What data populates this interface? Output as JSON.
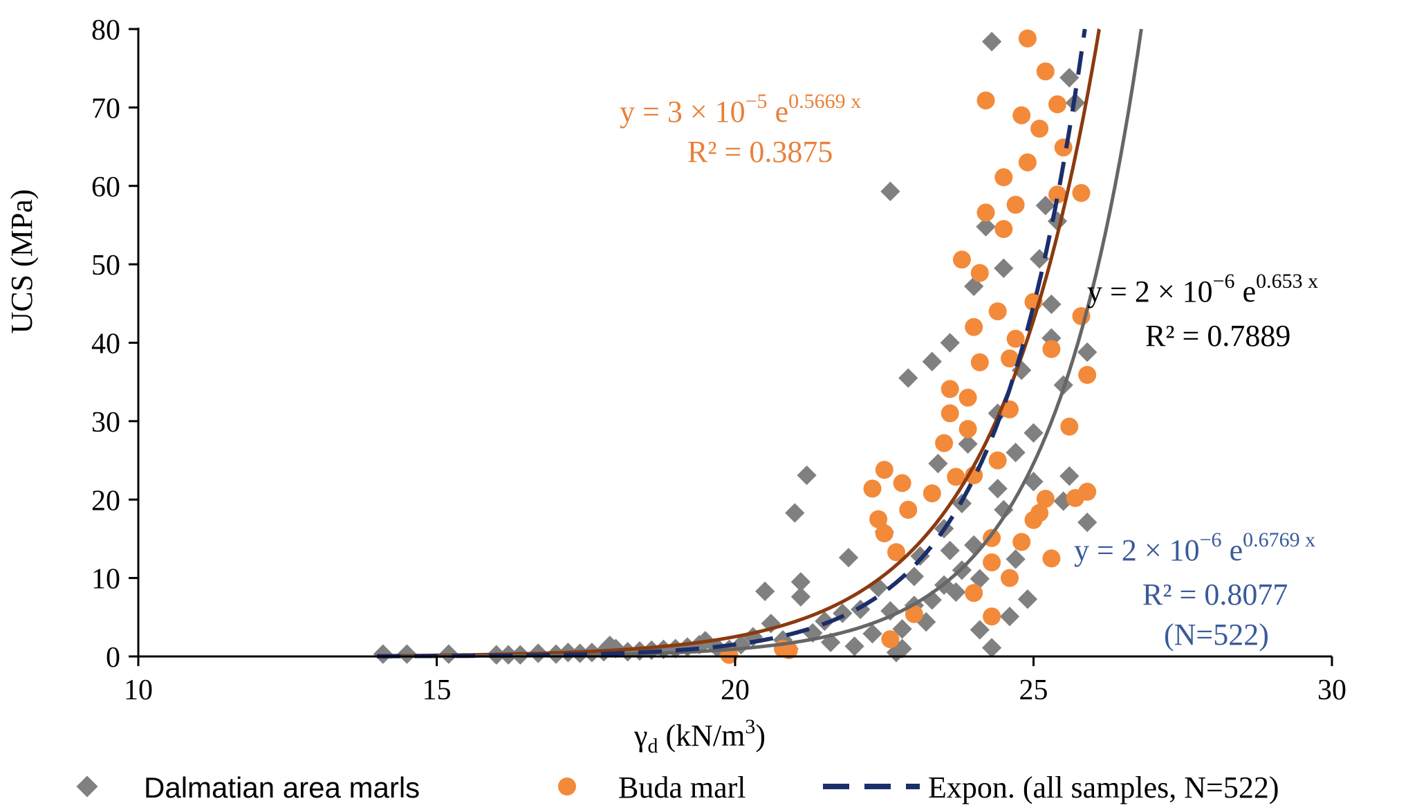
{
  "chart_data": {
    "type": "scatter",
    "xlabel": "γd (kN/m3)",
    "xlabel_parts": {
      "symbol": "γ",
      "subscript": "d",
      "unit_open": " (kN/m",
      "unit_sup": "3",
      "unit_close": ")"
    },
    "ylabel": "UCS (MPa)",
    "xlim": [
      10,
      30
    ],
    "ylim": [
      0,
      80
    ],
    "x_ticks": [
      10,
      15,
      20,
      25,
      30
    ],
    "y_ticks": [
      0,
      10,
      20,
      30,
      40,
      50,
      60,
      70,
      80
    ],
    "grid": false,
    "legend_position": "bottom",
    "colors": {
      "dalmatian": "#808080",
      "buda": "#F28A3A",
      "buda_trend": "#8B3A0F",
      "dalmatian_trend": "#666666",
      "all_trend": "#1A2E6B",
      "buda_label": "#E8813A",
      "all_label": "#3A5A9A",
      "axis": "#000000"
    },
    "series": [
      {
        "name": "Dalmatian area marls",
        "marker": "diamond",
        "points": [
          [
            14.1,
            0.3
          ],
          [
            14.5,
            0.3
          ],
          [
            15.2,
            0.3
          ],
          [
            16.0,
            0.2
          ],
          [
            16.2,
            0.2
          ],
          [
            16.4,
            0.2
          ],
          [
            16.7,
            0.4
          ],
          [
            17.0,
            0.3
          ],
          [
            17.2,
            0.5
          ],
          [
            17.4,
            0.4
          ],
          [
            17.6,
            0.5
          ],
          [
            17.8,
            0.6
          ],
          [
            17.9,
            1.4
          ],
          [
            18.0,
            1.0
          ],
          [
            18.2,
            0.6
          ],
          [
            18.4,
            0.7
          ],
          [
            18.6,
            0.8
          ],
          [
            18.8,
            0.9
          ],
          [
            19.0,
            1.0
          ],
          [
            19.2,
            1.2
          ],
          [
            19.4,
            1.5
          ],
          [
            19.5,
            2.0
          ],
          [
            19.7,
            1.1
          ],
          [
            19.9,
            0.9
          ],
          [
            20.1,
            1.5
          ],
          [
            20.3,
            2.5
          ],
          [
            20.5,
            8.3
          ],
          [
            20.6,
            4.2
          ],
          [
            20.8,
            2.1
          ],
          [
            20.9,
            1.0
          ],
          [
            21.0,
            18.3
          ],
          [
            21.1,
            9.5
          ],
          [
            21.2,
            23.1
          ],
          [
            21.1,
            7.6
          ],
          [
            21.3,
            3.0
          ],
          [
            21.5,
            4.5
          ],
          [
            21.6,
            1.8
          ],
          [
            21.8,
            5.5
          ],
          [
            21.9,
            12.6
          ],
          [
            22.0,
            1.3
          ],
          [
            22.1,
            6.0
          ],
          [
            22.3,
            2.9
          ],
          [
            22.4,
            8.8
          ],
          [
            22.5,
            15.9
          ],
          [
            22.6,
            59.3
          ],
          [
            22.7,
            0.5
          ],
          [
            22.8,
            1.0
          ],
          [
            22.9,
            35.5
          ],
          [
            23.0,
            10.2
          ],
          [
            23.1,
            12.8
          ],
          [
            23.2,
            4.4
          ],
          [
            23.3,
            37.6
          ],
          [
            23.4,
            24.6
          ],
          [
            23.5,
            16.3
          ],
          [
            23.6,
            40.0
          ],
          [
            23.7,
            8.2
          ],
          [
            23.8,
            19.5
          ],
          [
            23.9,
            27.1
          ],
          [
            24.0,
            47.2
          ],
          [
            24.1,
            3.4
          ],
          [
            24.2,
            54.8
          ],
          [
            24.3,
            1.1
          ],
          [
            24.3,
            78.4
          ],
          [
            24.4,
            31.0
          ],
          [
            24.5,
            49.5
          ],
          [
            24.6,
            5.1
          ],
          [
            24.7,
            12.4
          ],
          [
            24.8,
            36.5
          ],
          [
            24.9,
            7.3
          ],
          [
            25.0,
            22.3
          ],
          [
            25.1,
            50.7
          ],
          [
            25.2,
            57.5
          ],
          [
            25.3,
            44.9
          ],
          [
            25.4,
            55.5
          ],
          [
            25.5,
            34.6
          ],
          [
            25.6,
            73.8
          ],
          [
            25.7,
            70.6
          ],
          [
            25.9,
            38.8
          ],
          [
            25.9,
            17.1
          ],
          [
            25.6,
            23.0
          ],
          [
            23.0,
            6.5
          ],
          [
            23.5,
            9.1
          ],
          [
            24.0,
            14.2
          ],
          [
            24.5,
            18.7
          ],
          [
            25.0,
            28.5
          ],
          [
            23.8,
            11.0
          ],
          [
            24.4,
            21.4
          ],
          [
            22.8,
            3.5
          ],
          [
            23.3,
            7.2
          ],
          [
            24.7,
            26.0
          ],
          [
            25.3,
            40.6
          ],
          [
            25.5,
            19.8
          ],
          [
            24.1,
            9.9
          ],
          [
            23.6,
            13.5
          ],
          [
            22.6,
            5.8
          ]
        ]
      },
      {
        "name": "Buda marl",
        "marker": "circle",
        "points": [
          [
            19.9,
            0.2
          ],
          [
            20.8,
            1.0
          ],
          [
            20.9,
            0.8
          ],
          [
            22.3,
            21.4
          ],
          [
            22.4,
            17.5
          ],
          [
            22.5,
            15.7
          ],
          [
            22.5,
            23.8
          ],
          [
            22.6,
            2.2
          ],
          [
            22.7,
            13.3
          ],
          [
            22.8,
            22.1
          ],
          [
            22.9,
            18.7
          ],
          [
            23.0,
            5.4
          ],
          [
            23.3,
            20.8
          ],
          [
            23.5,
            27.2
          ],
          [
            23.6,
            34.1
          ],
          [
            23.6,
            31.0
          ],
          [
            23.7,
            22.9
          ],
          [
            23.8,
            50.6
          ],
          [
            23.9,
            29.0
          ],
          [
            23.9,
            33.0
          ],
          [
            24.0,
            23.1
          ],
          [
            24.0,
            42.0
          ],
          [
            24.1,
            48.9
          ],
          [
            24.1,
            37.5
          ],
          [
            24.2,
            56.6
          ],
          [
            24.2,
            70.9
          ],
          [
            24.3,
            5.1
          ],
          [
            24.3,
            12.0
          ],
          [
            24.4,
            25.0
          ],
          [
            24.4,
            44.0
          ],
          [
            24.5,
            54.5
          ],
          [
            24.5,
            61.1
          ],
          [
            24.6,
            10.0
          ],
          [
            24.6,
            31.5
          ],
          [
            24.7,
            40.5
          ],
          [
            24.7,
            57.6
          ],
          [
            24.8,
            14.6
          ],
          [
            24.8,
            69.0
          ],
          [
            24.9,
            63.0
          ],
          [
            24.9,
            78.8
          ],
          [
            25.0,
            17.4
          ],
          [
            25.0,
            45.2
          ],
          [
            25.1,
            67.3
          ],
          [
            25.2,
            74.6
          ],
          [
            25.2,
            20.1
          ],
          [
            25.3,
            12.5
          ],
          [
            25.3,
            39.2
          ],
          [
            25.4,
            58.9
          ],
          [
            25.4,
            70.4
          ],
          [
            25.5,
            64.9
          ],
          [
            25.6,
            29.3
          ],
          [
            25.7,
            20.2
          ],
          [
            25.8,
            43.4
          ],
          [
            25.8,
            59.1
          ],
          [
            25.9,
            35.9
          ],
          [
            25.9,
            21.0
          ],
          [
            24.0,
            8.1
          ],
          [
            24.3,
            15.1
          ],
          [
            24.6,
            38.0
          ],
          [
            25.1,
            18.3
          ]
        ]
      }
    ],
    "trendlines": [
      {
        "name": "Buda marl trend",
        "a": 3e-05,
        "b": 0.5669,
        "style": "solid"
      },
      {
        "name": "Dalmatian area marls trend",
        "a": 2e-06,
        "b": 0.653,
        "style": "solid"
      },
      {
        "name": "Expon. (all  samples, N=522)",
        "a": 2e-06,
        "b": 0.6769,
        "style": "dashed"
      }
    ],
    "annotations": {
      "buda": {
        "eq_prefix": "y = 3 × 10",
        "eq_exp": "−5",
        "eq_e": " e",
        "eq_e_exp": "0.5669 x",
        "r2": "R² = 0.3875"
      },
      "dalmatian": {
        "eq_prefix": "y = 2 × 10",
        "eq_exp": "−6",
        "eq_e": " e",
        "eq_e_exp": "0.653 x",
        "r2": "R² = 0.7889"
      },
      "all": {
        "eq_prefix": "y = 2 × 10",
        "eq_exp": "−6",
        "eq_e": " e",
        "eq_e_exp": "0.6769 x",
        "r2": "R² = 0.8077",
        "n": "(N=522)"
      }
    },
    "legend": [
      {
        "label": "Dalmatian area marls",
        "marker": "diamond"
      },
      {
        "label": "Buda marl",
        "marker": "circle"
      },
      {
        "label": "Expon. (all  samples, N=522)",
        "marker": "dashed-line"
      }
    ]
  }
}
